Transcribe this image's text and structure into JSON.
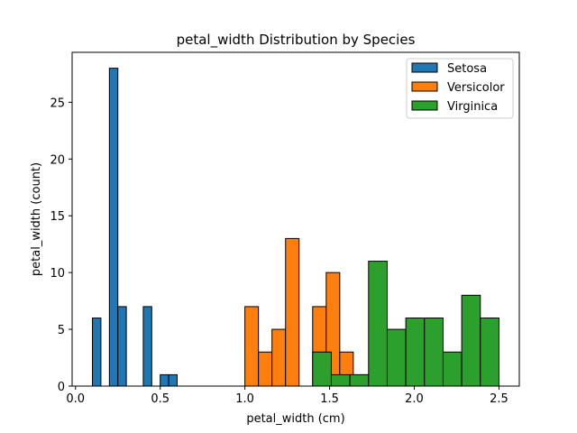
{
  "chart_data": {
    "type": "bar",
    "title": "petal_width Distribution by Species",
    "xlabel": "petal_width (cm)",
    "ylabel": "petal_width (count)",
    "xlim": [
      -0.02,
      2.62
    ],
    "ylim": [
      0,
      29.4
    ],
    "xticks": [
      0.0,
      0.5,
      1.0,
      1.5,
      2.0,
      2.5
    ],
    "xtick_labels": [
      "0.0",
      "0.5",
      "1.0",
      "1.5",
      "2.0",
      "2.5"
    ],
    "yticks": [
      0,
      5,
      10,
      15,
      20,
      25
    ],
    "ytick_labels": [
      "0",
      "5",
      "10",
      "15",
      "20",
      "25"
    ],
    "grid": false,
    "legend_position": "top-right",
    "series": [
      {
        "name": "Setosa",
        "color": "#1f77b4",
        "bins": [
          {
            "x0": 0.1,
            "x1": 0.15,
            "value": 6
          },
          {
            "x0": 0.2,
            "x1": 0.25,
            "value": 28
          },
          {
            "x0": 0.25,
            "x1": 0.3,
            "value": 7
          },
          {
            "x0": 0.4,
            "x1": 0.45,
            "value": 7
          },
          {
            "x0": 0.5,
            "x1": 0.55,
            "value": 1
          },
          {
            "x0": 0.55,
            "x1": 0.6,
            "value": 1
          }
        ]
      },
      {
        "name": "Versicolor",
        "color": "#ff7f0e",
        "bins": [
          {
            "x0": 1.0,
            "x1": 1.08,
            "value": 7
          },
          {
            "x0": 1.08,
            "x1": 1.16,
            "value": 3
          },
          {
            "x0": 1.16,
            "x1": 1.24,
            "value": 5
          },
          {
            "x0": 1.24,
            "x1": 1.32,
            "value": 13
          },
          {
            "x0": 1.4,
            "x1": 1.48,
            "value": 7
          },
          {
            "x0": 1.48,
            "x1": 1.56,
            "value": 10
          },
          {
            "x0": 1.56,
            "x1": 1.64,
            "value": 3
          },
          {
            "x0": 1.64,
            "x1": 1.72,
            "value": 1
          },
          {
            "x0": 1.72,
            "x1": 1.8,
            "value": 1
          }
        ]
      },
      {
        "name": "Virginica",
        "color": "#2ca02c",
        "bins": [
          {
            "x0": 1.4,
            "x1": 1.51,
            "value": 3
          },
          {
            "x0": 1.51,
            "x1": 1.62,
            "value": 1
          },
          {
            "x0": 1.62,
            "x1": 1.73,
            "value": 1
          },
          {
            "x0": 1.73,
            "x1": 1.84,
            "value": 11
          },
          {
            "x0": 1.84,
            "x1": 1.95,
            "value": 5
          },
          {
            "x0": 1.95,
            "x1": 2.06,
            "value": 6
          },
          {
            "x0": 2.06,
            "x1": 2.17,
            "value": 6
          },
          {
            "x0": 2.17,
            "x1": 2.28,
            "value": 3
          },
          {
            "x0": 2.28,
            "x1": 2.39,
            "value": 8
          },
          {
            "x0": 2.39,
            "x1": 2.5,
            "value": 6
          }
        ]
      }
    ]
  }
}
